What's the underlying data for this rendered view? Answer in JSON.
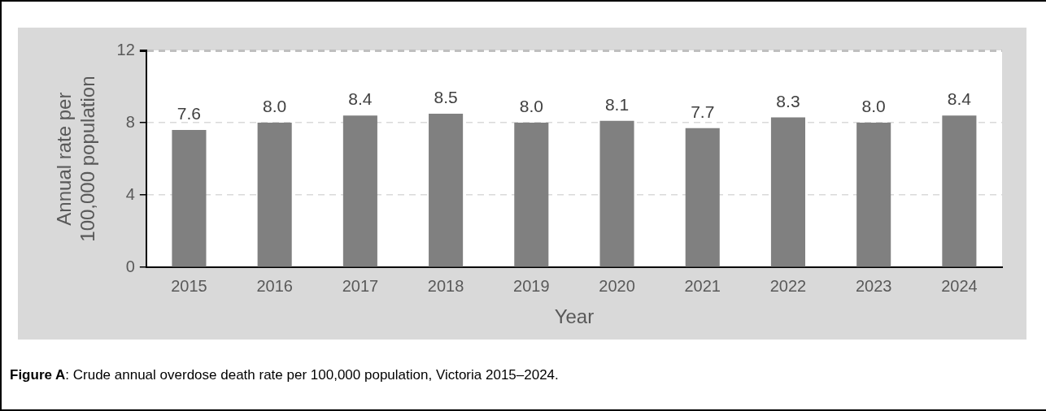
{
  "chart_data": {
    "type": "bar",
    "xlabel": "Year",
    "ylabel": "Annual rate per\n100,000 population",
    "categories": [
      "2015",
      "2016",
      "2017",
      "2018",
      "2019",
      "2020",
      "2021",
      "2022",
      "2023",
      "2024"
    ],
    "values": [
      7.6,
      8.0,
      8.4,
      8.5,
      8.0,
      8.1,
      7.7,
      8.3,
      8.0,
      8.4
    ],
    "color": "#808080",
    "value_labels": [
      "7.6",
      "8.0",
      "8.4",
      "8.5",
      "8.0",
      "8.1",
      "7.7",
      "8.3",
      "8.0",
      "8.4"
    ],
    "ylim": [
      0,
      12
    ],
    "yticks": [
      0,
      4,
      8,
      12
    ],
    "grid": "y",
    "annotations": [
      "Figure A: Crude annual overdose death rate per 100,000 population, Victoria 2015–2024."
    ]
  }
}
